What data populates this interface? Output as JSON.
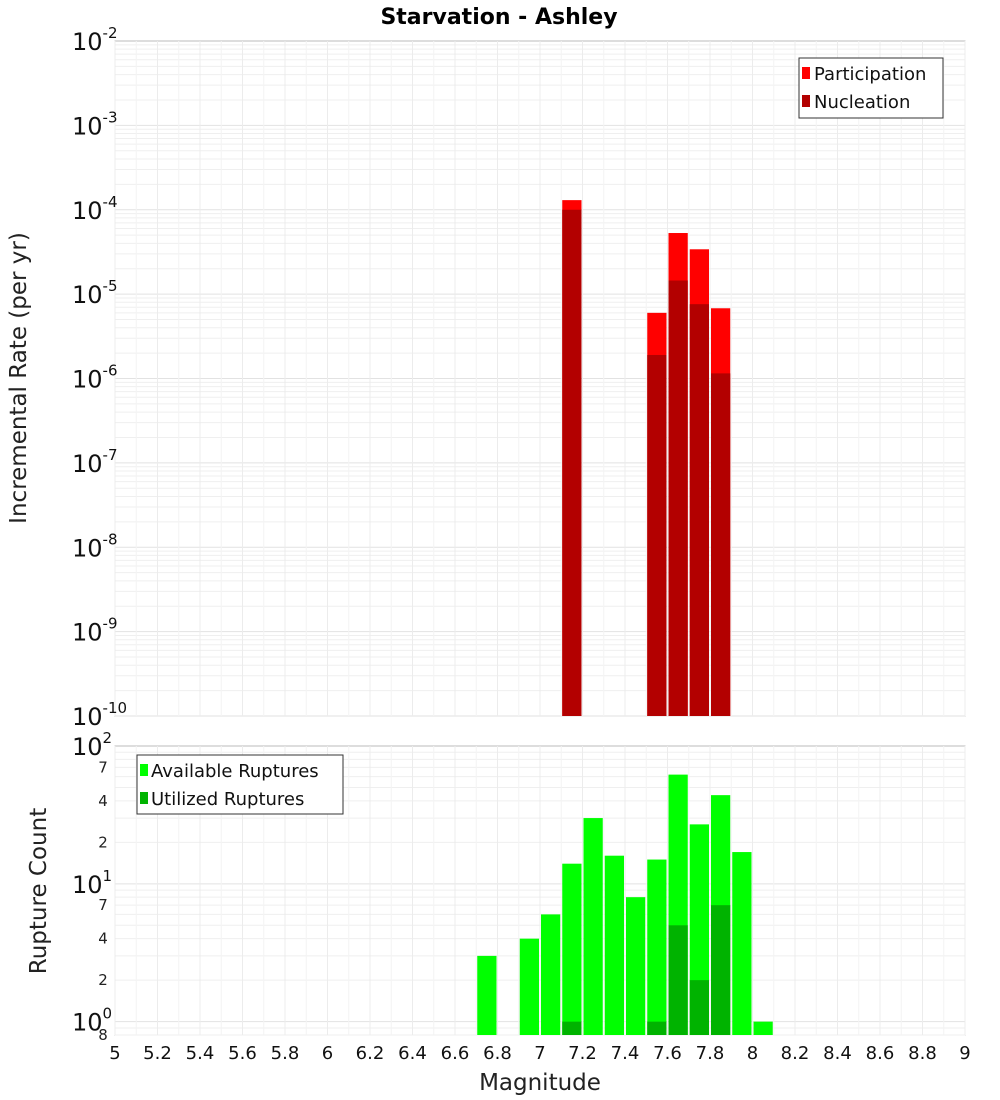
{
  "chart_data": [
    {
      "type": "bar",
      "title": "Starvation - Ashley",
      "xlabel": "",
      "ylabel": "Incremental Rate (per yr)",
      "xlim": [
        5,
        9
      ],
      "ylim": [
        1e-10,
        0.01
      ],
      "yscale": "log",
      "y_decades": [
        {
          "base": "10",
          "exp": "-10",
          "value": 1e-10
        },
        {
          "base": "10",
          "exp": "-9",
          "value": 1e-09
        },
        {
          "base": "10",
          "exp": "-8",
          "value": 1e-08
        },
        {
          "base": "10",
          "exp": "-7",
          "value": 1e-07
        },
        {
          "base": "10",
          "exp": "-6",
          "value": 1e-06
        },
        {
          "base": "10",
          "exp": "-5",
          "value": 1e-05
        },
        {
          "base": "10",
          "exp": "-4",
          "value": 0.0001
        },
        {
          "base": "10",
          "exp": "-3",
          "value": 0.001
        },
        {
          "base": "10",
          "exp": "-2",
          "value": 0.01
        }
      ],
      "legend": {
        "position": "top-right",
        "items": [
          {
            "label": "Participation",
            "color": "#ff0000"
          },
          {
            "label": "Nucleation",
            "color": "#b30000"
          }
        ]
      },
      "series": [
        {
          "name": "Participation",
          "color": "#ff0000",
          "x": [
            7.15,
            7.55,
            7.65,
            7.75,
            7.85
          ],
          "values": [
            0.00013,
            6e-06,
            5.3e-05,
            3.4e-05,
            6.8e-06
          ]
        },
        {
          "name": "Nucleation",
          "color": "#b30000",
          "x": [
            7.15,
            7.55,
            7.65,
            7.75,
            7.85
          ],
          "values": [
            0.0001,
            1.9e-06,
            1.45e-05,
            7.6e-06,
            1.15e-06
          ]
        }
      ]
    },
    {
      "type": "bar",
      "title": "",
      "xlabel": "Magnitude",
      "ylabel": "Rupture Count",
      "xlim": [
        5,
        9
      ],
      "ylim": [
        0.8,
        100
      ],
      "yscale": "log",
      "x_ticks": [
        "5",
        "5.2",
        "5.4",
        "5.6",
        "5.8",
        "6",
        "6.2",
        "6.4",
        "6.6",
        "6.8",
        "7",
        "7.2",
        "7.4",
        "7.6",
        "7.8",
        "8",
        "8.2",
        "8.4",
        "8.6",
        "8.8",
        "9"
      ],
      "y_major_ticks": [
        {
          "base": "10",
          "exp": "0",
          "value": 1
        },
        {
          "base": "10",
          "exp": "1",
          "value": 10
        },
        {
          "base": "10",
          "exp": "2",
          "value": 100
        }
      ],
      "y_minor_ticks": [
        {
          "label": "8",
          "value": 0.8
        },
        {
          "label": "2",
          "value": 2
        },
        {
          "label": "4",
          "value": 4
        },
        {
          "label": "7",
          "value": 7
        },
        {
          "label": "2",
          "value": 20
        },
        {
          "label": "4",
          "value": 40
        },
        {
          "label": "7",
          "value": 70
        }
      ],
      "legend": {
        "position": "top-left",
        "items": [
          {
            "label": "Available Ruptures",
            "color": "#00ff00"
          },
          {
            "label": "Utilized Ruptures",
            "color": "#00b300"
          }
        ]
      },
      "series": [
        {
          "name": "Available Ruptures",
          "color": "#00ff00",
          "x": [
            6.75,
            6.95,
            7.05,
            7.15,
            7.25,
            7.35,
            7.45,
            7.55,
            7.65,
            7.75,
            7.85,
            7.95,
            8.05
          ],
          "values": [
            3,
            4,
            6,
            14,
            30,
            16,
            8,
            15,
            62,
            27,
            44,
            17,
            1
          ]
        },
        {
          "name": "Utilized Ruptures",
          "color": "#00b300",
          "x": [
            7.15,
            7.55,
            7.65,
            7.75,
            7.85
          ],
          "values": [
            1,
            1,
            5,
            2,
            7
          ]
        }
      ]
    }
  ]
}
